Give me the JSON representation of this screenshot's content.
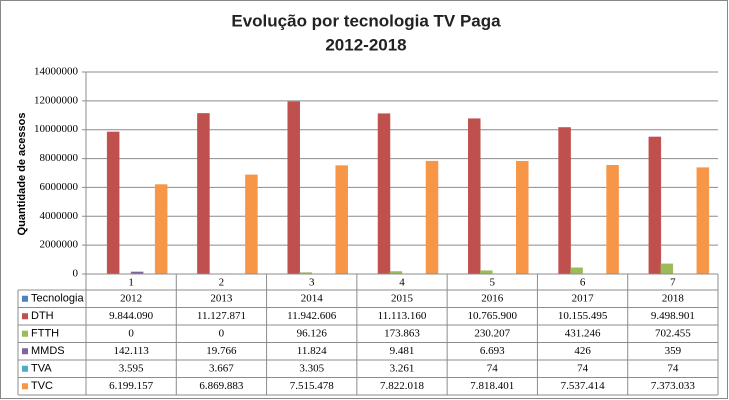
{
  "chart_data": {
    "type": "bar",
    "title": "Evolução por tecnologia TV Paga",
    "subtitle": "2012-2018",
    "y_label": "Quantidade de acessos",
    "categories": [
      "1",
      "2",
      "3",
      "4",
      "5",
      "6",
      "7"
    ],
    "ylim": [
      0,
      14000000
    ],
    "yticks": [
      0,
      2000000,
      4000000,
      6000000,
      8000000,
      10000000,
      12000000,
      14000000
    ],
    "grid": true,
    "series": [
      {
        "name": "Tecnologia",
        "color": "#4f81bd",
        "values": [
          2012,
          2013,
          2014,
          2015,
          2016,
          2017,
          2018
        ]
      },
      {
        "name": "DTH",
        "color": "#c0504d",
        "values": [
          9844090,
          11127871,
          11942606,
          11113160,
          10765900,
          10155495,
          9498901
        ],
        "value_labels": [
          "9.844.090",
          "11.127.871",
          "11.942.606",
          "11.113.160",
          "10.765.900",
          "10.155.495",
          "9.498.901"
        ]
      },
      {
        "name": "FTTH",
        "color": "#9bbb59",
        "values": [
          0,
          0,
          96126,
          173863,
          230207,
          431246,
          702455
        ],
        "value_labels": [
          "0",
          "0",
          "96.126",
          "173.863",
          "230.207",
          "431.246",
          "702.455"
        ]
      },
      {
        "name": "MMDS",
        "color": "#8064a2",
        "values": [
          142113,
          19766,
          11824,
          9481,
          6693,
          426,
          359
        ],
        "value_labels": [
          "142.113",
          "19.766",
          "11.824",
          "9.481",
          "6.693",
          "426",
          "359"
        ]
      },
      {
        "name": "TVA",
        "color": "#4bacc6",
        "values": [
          3595,
          3667,
          3305,
          3261,
          74,
          74,
          74
        ],
        "value_labels": [
          "3.595",
          "3.667",
          "3.305",
          "3.261",
          "74",
          "74",
          "74"
        ]
      },
      {
        "name": "TVC",
        "color": "#f79646",
        "values": [
          6199157,
          6869883,
          7515478,
          7822018,
          7818401,
          7537414,
          7373033
        ],
        "value_labels": [
          "6.199.157",
          "6.869.883",
          "7.515.478",
          "7.822.018",
          "7.818.401",
          "7.537.414",
          "7.373.033"
        ]
      }
    ]
  }
}
